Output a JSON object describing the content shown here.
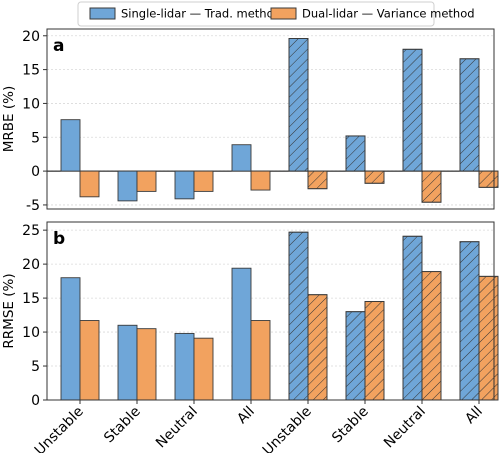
{
  "legend": {
    "placement": "top-center",
    "items": [
      {
        "label": "Single-lidar — Trad. method",
        "color": "#6fa6d8"
      },
      {
        "label": "Dual-lidar — Variance method",
        "color": "#f2a25f"
      }
    ]
  },
  "colors": {
    "blue": "#6fa6d8",
    "orange": "#f2a25f",
    "edge": "#3a3a3a"
  },
  "chart_data": [
    {
      "type": "bar",
      "panel_label": "a",
      "ylabel": "MRBE (%)",
      "ylim": [
        -5.6,
        21
      ],
      "yticks": [
        -5,
        0,
        5,
        10,
        15,
        20
      ],
      "grid": true,
      "categories": [
        "Unstable",
        "Stable",
        "Neutral",
        "All",
        "Unstable",
        "Stable",
        "Neutral",
        "All"
      ],
      "hatched": [
        false,
        false,
        false,
        false,
        true,
        true,
        true,
        true
      ],
      "series": [
        {
          "name": "Single-lidar — Trad. method",
          "values": [
            7.6,
            -4.4,
            -4.1,
            3.9,
            19.6,
            5.2,
            18.0,
            16.6
          ]
        },
        {
          "name": "Dual-lidar — Variance method",
          "values": [
            -3.8,
            -3.0,
            -3.0,
            -2.8,
            -2.6,
            -1.8,
            -4.6,
            -2.4
          ]
        }
      ]
    },
    {
      "type": "bar",
      "panel_label": "b",
      "ylabel": "RRMSE (%)",
      "ylim": [
        0,
        26.2
      ],
      "yticks": [
        0,
        5,
        10,
        15,
        20,
        25
      ],
      "grid": true,
      "categories": [
        "Unstable",
        "Stable",
        "Neutral",
        "All",
        "Unstable",
        "Stable",
        "Neutral",
        "All"
      ],
      "hatched": [
        false,
        false,
        false,
        false,
        true,
        true,
        true,
        true
      ],
      "series": [
        {
          "name": "Single-lidar — Trad. method",
          "values": [
            18.0,
            11.0,
            9.8,
            19.4,
            24.7,
            13.0,
            24.1,
            23.3
          ]
        },
        {
          "name": "Dual-lidar — Variance method",
          "values": [
            11.7,
            10.5,
            9.1,
            11.7,
            15.5,
            14.5,
            18.9,
            18.2
          ]
        }
      ]
    }
  ]
}
